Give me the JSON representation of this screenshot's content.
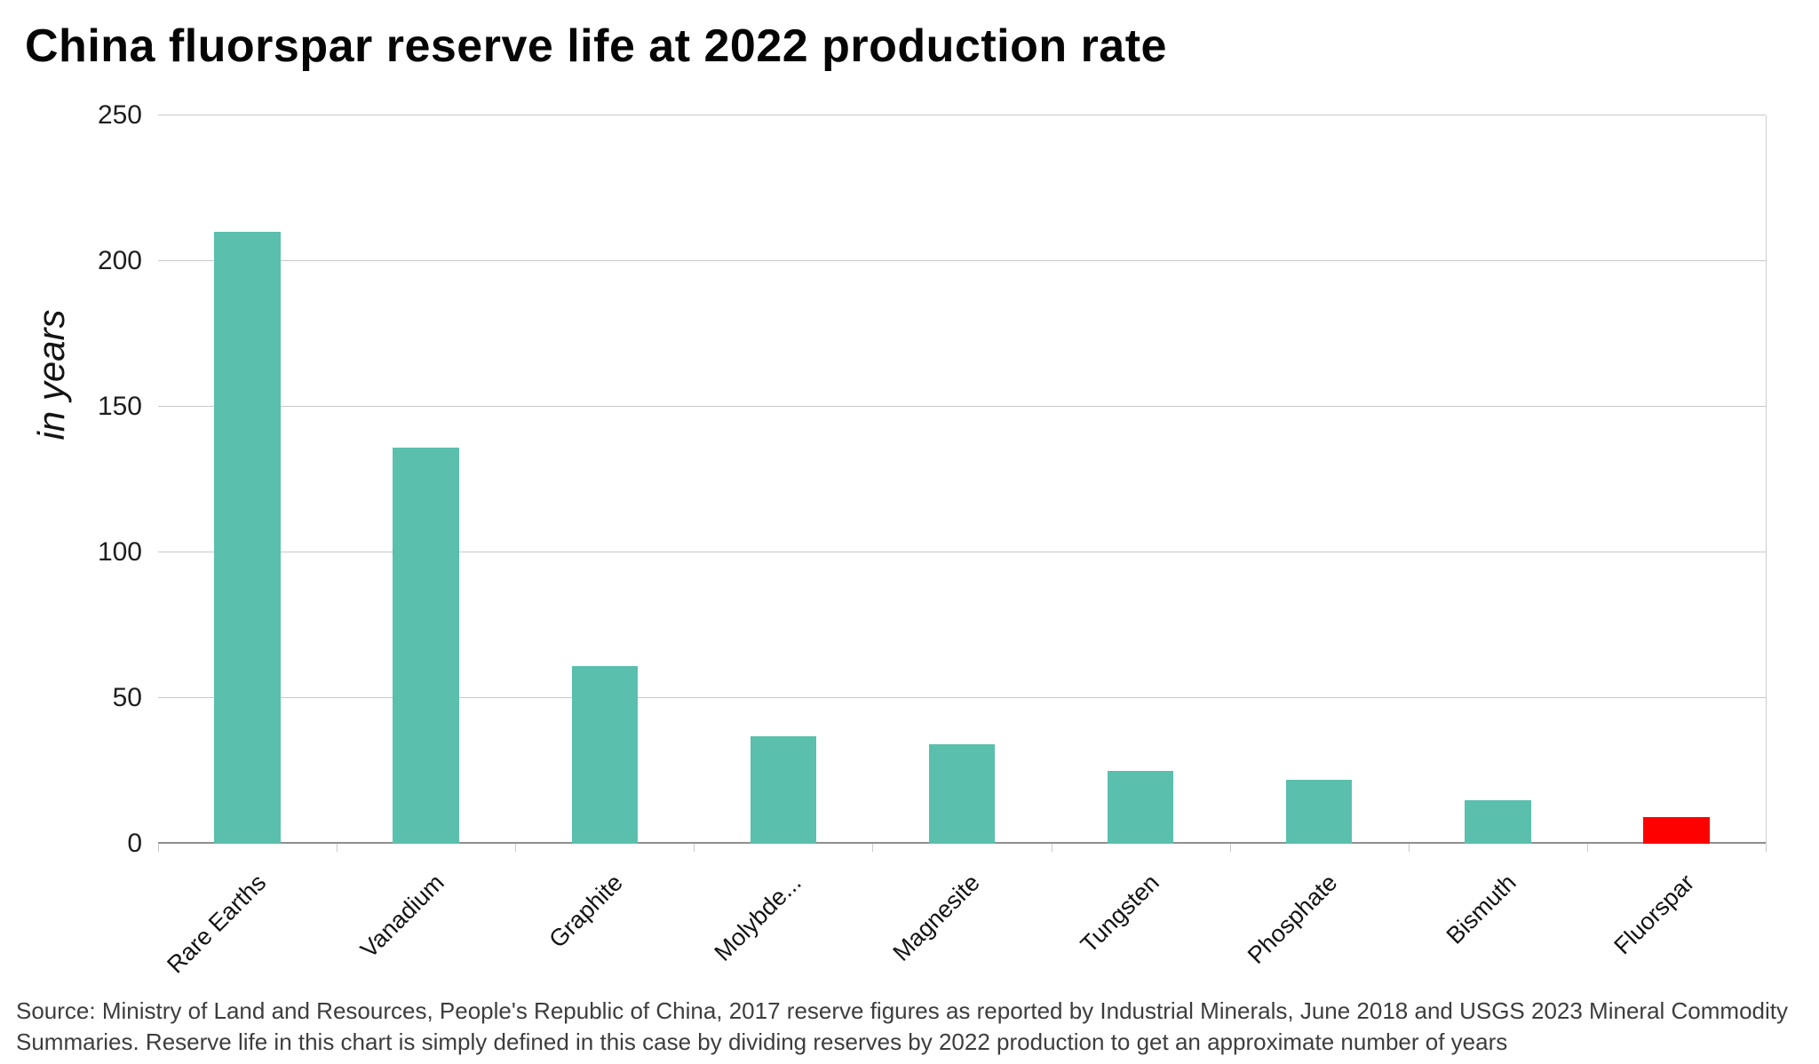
{
  "page": {
    "background": "#ffffff"
  },
  "chart_data": {
    "type": "bar",
    "title": "China fluorspar reserve life at 2022 production rate",
    "ylabel": "in years",
    "xlabel": "",
    "categories": [
      "Rare Earths",
      "Vanadium",
      "Graphite",
      "Molybde...",
      "Magnesite",
      "Tungsten",
      "Phosphate",
      "Bismuth",
      "Fluorspar"
    ],
    "values": [
      210,
      136,
      61,
      37,
      34,
      25,
      22,
      15,
      9
    ],
    "bar_colors": [
      "#5ABFAD",
      "#5ABFAD",
      "#5ABFAD",
      "#5ABFAD",
      "#5ABFAD",
      "#5ABFAD",
      "#5ABFAD",
      "#5ABFAD",
      "#FF0000"
    ],
    "ylim": [
      0,
      250
    ],
    "yticks": [
      0,
      50,
      100,
      150,
      200,
      250
    ],
    "grid": true,
    "legend": false,
    "highlight": {
      "category": "Fluorspar",
      "color": "#FF0000"
    }
  },
  "colors": {
    "bar_default": "#5ABFAD",
    "bar_highlight": "#FF0000",
    "gridline": "#c9c9c9",
    "axis_baseline": "#8f8f8f",
    "title_text": "#060606",
    "source_text": "#3d3d3d"
  },
  "footer": {
    "source_text": "Source: Ministry of Land and Resources, People's Republic of China, 2017 reserve figures as reported by Industrial Minerals, June 2018 and USGS 2023 Mineral Commodity Summaries. Reserve life in this chart is simply defined in this case by dividing reserves by 2022 production to get an approximate number of years"
  }
}
